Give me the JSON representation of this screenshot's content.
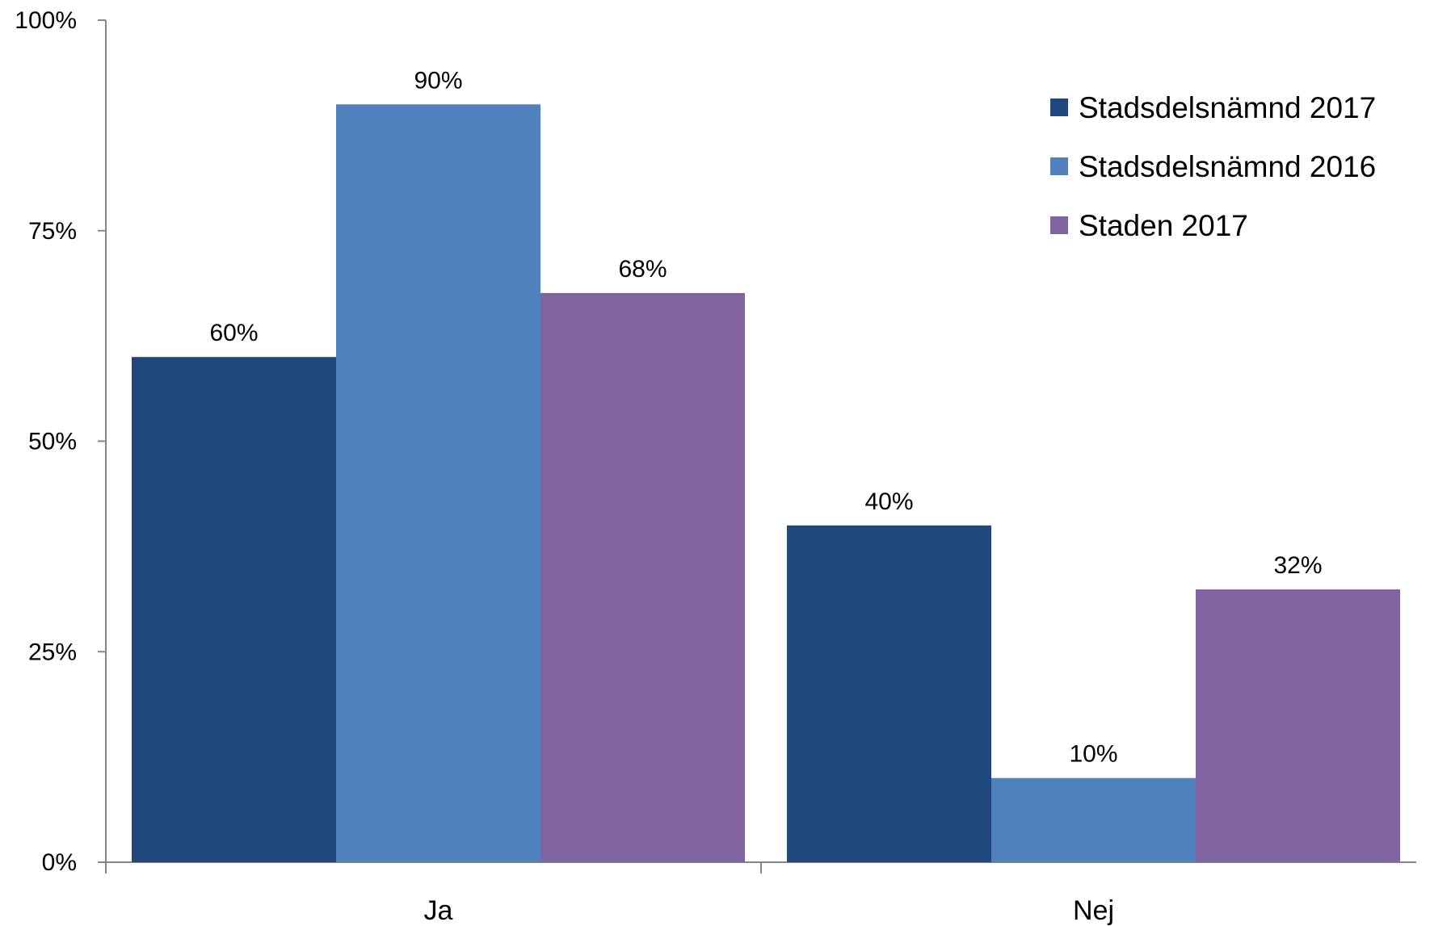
{
  "chart_data": {
    "type": "bar",
    "categories": [
      "Ja",
      "Nej"
    ],
    "series": [
      {
        "name": "Stadsdelsnämnd 2017",
        "color": "#1F497D",
        "values": [
          60,
          40
        ],
        "labels": [
          "60%",
          "40%"
        ]
      },
      {
        "name": "Stadsdelsnämnd 2016",
        "color": "#4F81BD",
        "values": [
          90,
          10
        ],
        "labels": [
          "90%",
          "10%"
        ]
      },
      {
        "name": "Staden 2017",
        "color": "#8064A2",
        "values": [
          67.6,
          32.4
        ],
        "labels": [
          "68%",
          "32%"
        ]
      }
    ],
    "yticks": [
      {
        "value": 0,
        "label": "0%"
      },
      {
        "value": 25,
        "label": "25%"
      },
      {
        "value": 50,
        "label": "50%"
      },
      {
        "value": 75,
        "label": "75%"
      },
      {
        "value": 100,
        "label": "100%"
      }
    ],
    "ylim": [
      0,
      100
    ],
    "title": "",
    "xlabel": "",
    "ylabel": "",
    "grid": false,
    "legend_position": "top-right",
    "axis_color": "#868686"
  }
}
